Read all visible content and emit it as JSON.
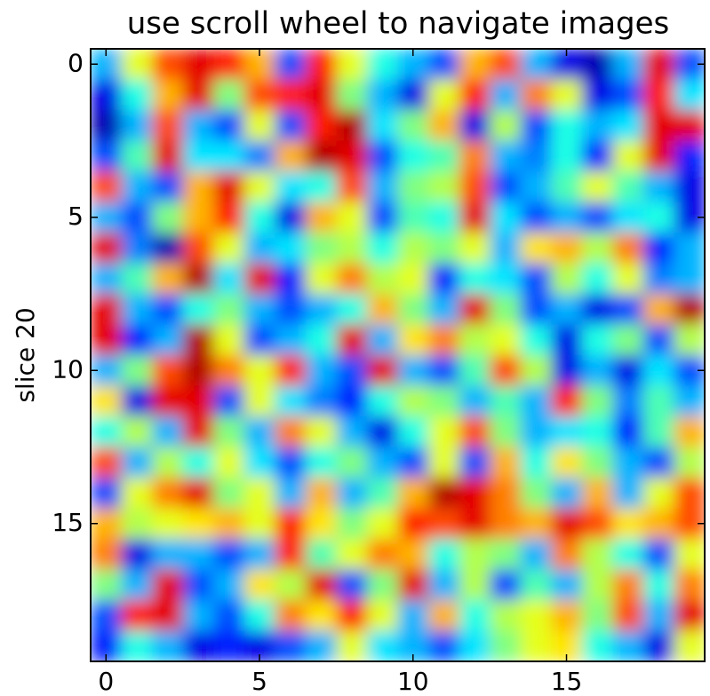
{
  "chart_data": {
    "type": "heatmap",
    "title": "use scroll wheel to navigate images",
    "ylabel": "slice 20",
    "colormap": "jet",
    "interpolation": "bilinear",
    "clim": [
      0,
      1
    ],
    "xlim": [
      -0.5,
      19.5
    ],
    "ylim": [
      19.5,
      -0.5
    ],
    "xticks": [
      0,
      5,
      10,
      15
    ],
    "yticks": [
      0,
      5,
      10,
      15
    ],
    "z": [
      [
        0.3,
        0.6,
        0.8,
        0.9,
        0.85,
        0.7,
        0.2,
        0.85,
        0.6,
        0.4,
        0.3,
        0.2,
        0.7,
        0.8,
        0.3,
        0.1,
        0.05,
        0.3,
        0.9,
        0.2
      ],
      [
        0.1,
        0.4,
        0.7,
        0.9,
        0.5,
        0.8,
        0.85,
        0.9,
        0.5,
        0.3,
        0.1,
        0.6,
        0.85,
        0.3,
        0.75,
        0.6,
        0.1,
        0.2,
        0.85,
        0.35
      ],
      [
        0.05,
        0.3,
        0.8,
        0.3,
        0.2,
        0.6,
        0.2,
        0.85,
        0.95,
        0.35,
        0.5,
        0.7,
        0.1,
        0.55,
        0.2,
        0.4,
        0.3,
        0.35,
        0.9,
        0.9
      ],
      [
        0.2,
        0.45,
        0.9,
        0.35,
        0.35,
        0.25,
        0.7,
        0.95,
        0.9,
        0.2,
        0.4,
        0.45,
        0.75,
        0.3,
        0.25,
        0.4,
        0.15,
        0.6,
        0.9,
        0.15
      ],
      [
        0.8,
        0.3,
        0.2,
        0.7,
        0.9,
        0.6,
        0.35,
        0.4,
        0.8,
        0.3,
        0.5,
        0.55,
        0.8,
        0.2,
        0.3,
        0.45,
        0.6,
        0.45,
        0.3,
        0.1
      ],
      [
        0.3,
        0.2,
        0.5,
        0.7,
        0.85,
        0.4,
        0.1,
        0.7,
        0.6,
        0.2,
        0.45,
        0.4,
        0.9,
        0.35,
        0.2,
        0.3,
        0.2,
        0.35,
        0.4,
        0.1
      ],
      [
        0.9,
        0.25,
        0.05,
        0.8,
        0.6,
        0.3,
        0.35,
        0.5,
        0.55,
        0.4,
        0.55,
        0.5,
        0.6,
        0.3,
        0.65,
        0.7,
        0.55,
        0.75,
        0.15,
        0.3
      ],
      [
        0.3,
        0.45,
        0.7,
        0.95,
        0.35,
        0.9,
        0.15,
        0.6,
        0.75,
        0.55,
        0.6,
        0.15,
        0.4,
        0.35,
        0.2,
        0.55,
        0.4,
        0.6,
        0.25,
        0.3
      ],
      [
        0.9,
        0.3,
        0.2,
        0.4,
        0.5,
        0.3,
        0.2,
        0.3,
        0.4,
        0.7,
        0.5,
        0.3,
        0.9,
        0.5,
        0.2,
        0.3,
        0.1,
        0.2,
        0.7,
        0.95
      ],
      [
        0.9,
        0.15,
        0.3,
        0.95,
        0.6,
        0.2,
        0.3,
        0.4,
        0.9,
        0.3,
        0.65,
        0.75,
        0.55,
        0.6,
        0.4,
        0.1,
        0.4,
        0.5,
        0.2,
        0.55
      ],
      [
        0.3,
        0.5,
        0.8,
        0.95,
        0.75,
        0.6,
        0.85,
        0.3,
        0.2,
        0.9,
        0.3,
        0.2,
        0.45,
        0.8,
        0.55,
        0.1,
        0.3,
        0.1,
        0.35,
        0.2
      ],
      [
        0.65,
        0.1,
        0.9,
        0.9,
        0.2,
        0.6,
        0.35,
        0.25,
        0.15,
        0.4,
        0.55,
        0.5,
        0.3,
        0.45,
        0.3,
        0.85,
        0.5,
        0.25,
        0.45,
        0.3
      ],
      [
        0.4,
        0.55,
        0.3,
        0.9,
        0.5,
        0.3,
        0.75,
        0.6,
        0.3,
        0.1,
        0.4,
        0.6,
        0.8,
        0.5,
        0.3,
        0.35,
        0.4,
        0.15,
        0.45,
        0.7
      ],
      [
        0.8,
        0.3,
        0.55,
        0.4,
        0.6,
        0.35,
        0.2,
        0.4,
        0.5,
        0.3,
        0.2,
        0.6,
        0.2,
        0.7,
        0.4,
        0.65,
        0.5,
        0.3,
        0.2,
        0.55
      ],
      [
        0.2,
        0.6,
        0.75,
        0.9,
        0.5,
        0.6,
        0.3,
        0.7,
        0.3,
        0.45,
        0.7,
        0.95,
        0.9,
        0.75,
        0.5,
        0.3,
        0.7,
        0.3,
        0.6,
        0.8
      ],
      [
        0.7,
        0.55,
        0.6,
        0.65,
        0.7,
        0.6,
        0.85,
        0.65,
        0.5,
        0.6,
        0.85,
        0.8,
        0.9,
        0.75,
        0.7,
        0.9,
        0.8,
        0.65,
        0.7,
        0.8
      ],
      [
        0.75,
        0.1,
        0.3,
        0.3,
        0.2,
        0.3,
        0.85,
        0.45,
        0.6,
        0.75,
        0.7,
        0.4,
        0.55,
        0.5,
        0.3,
        0.75,
        0.55,
        0.4,
        0.2,
        0.6
      ],
      [
        0.5,
        0.3,
        0.9,
        0.2,
        0.3,
        0.65,
        0.55,
        0.9,
        0.2,
        0.5,
        0.9,
        0.3,
        0.55,
        0.2,
        0.45,
        0.3,
        0.55,
        0.75,
        0.4,
        0.75
      ],
      [
        0.2,
        0.85,
        0.9,
        0.3,
        0.2,
        0.4,
        0.75,
        0.65,
        0.85,
        0.6,
        0.3,
        0.7,
        0.4,
        0.55,
        0.6,
        0.7,
        0.5,
        0.8,
        0.3,
        0.9
      ],
      [
        0.15,
        0.4,
        0.3,
        0.1,
        0.15,
        0.1,
        0.2,
        0.3,
        0.6,
        0.35,
        0.3,
        0.2,
        0.35,
        0.5,
        0.6,
        0.65,
        0.4,
        0.3,
        0.1,
        0.6
      ]
    ]
  }
}
